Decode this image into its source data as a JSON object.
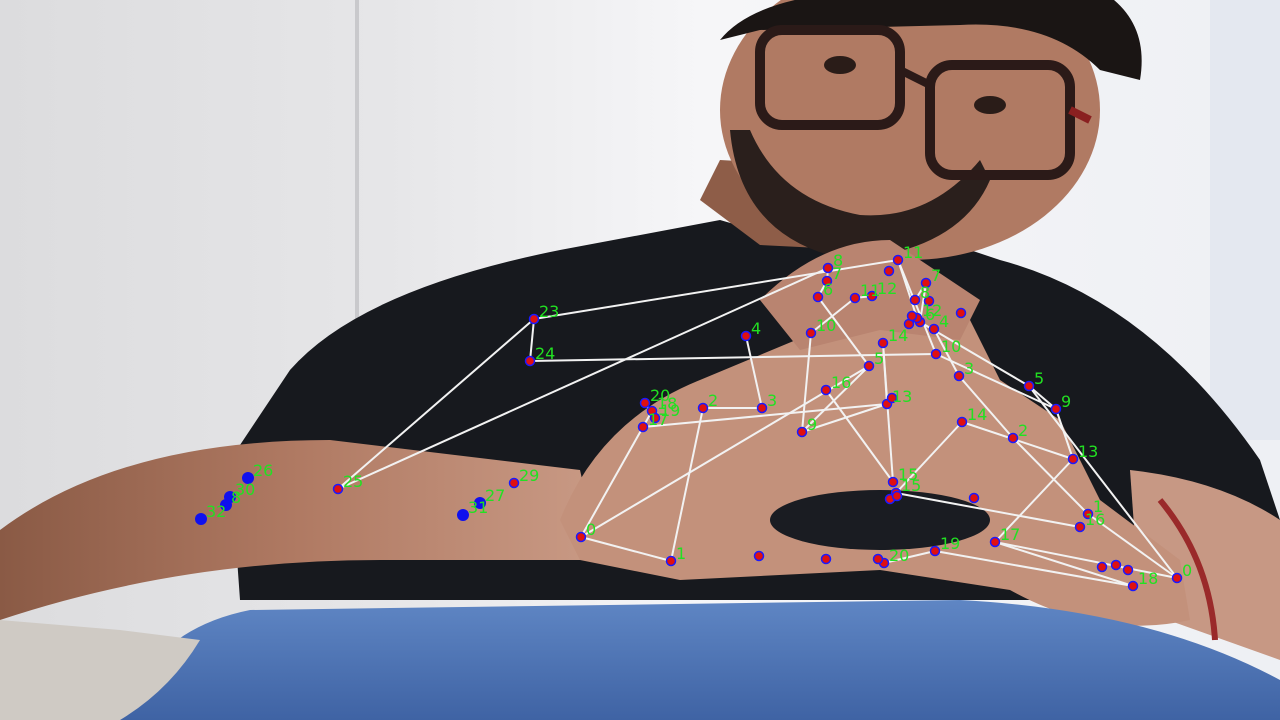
{
  "image": {
    "subject": "person-with-hand-pose-overlay",
    "colors": {
      "skeleton_line": "#f2f2f2",
      "keypoint_fill": "#e01010",
      "keypoint_ring": "#1a1aff",
      "label": "#22e022",
      "body_point": "#1010ee"
    }
  },
  "labels": {
    "pose": [
      "23",
      "24",
      "25",
      "26",
      "27",
      "29",
      "30",
      "31",
      "32",
      "8"
    ],
    "hand_left": [
      "0",
      "1",
      "2",
      "3",
      "4",
      "5",
      "6",
      "7",
      "8",
      "9",
      "10",
      "11",
      "12",
      "13",
      "14",
      "15",
      "16",
      "17",
      "18",
      "19",
      "20"
    ],
    "hand_right": [
      "0",
      "1",
      "2",
      "3",
      "4",
      "5",
      "6",
      "7",
      "8",
      "9",
      "10",
      "11",
      "12",
      "13",
      "14",
      "15",
      "16",
      "17",
      "18",
      "19",
      "20"
    ]
  }
}
